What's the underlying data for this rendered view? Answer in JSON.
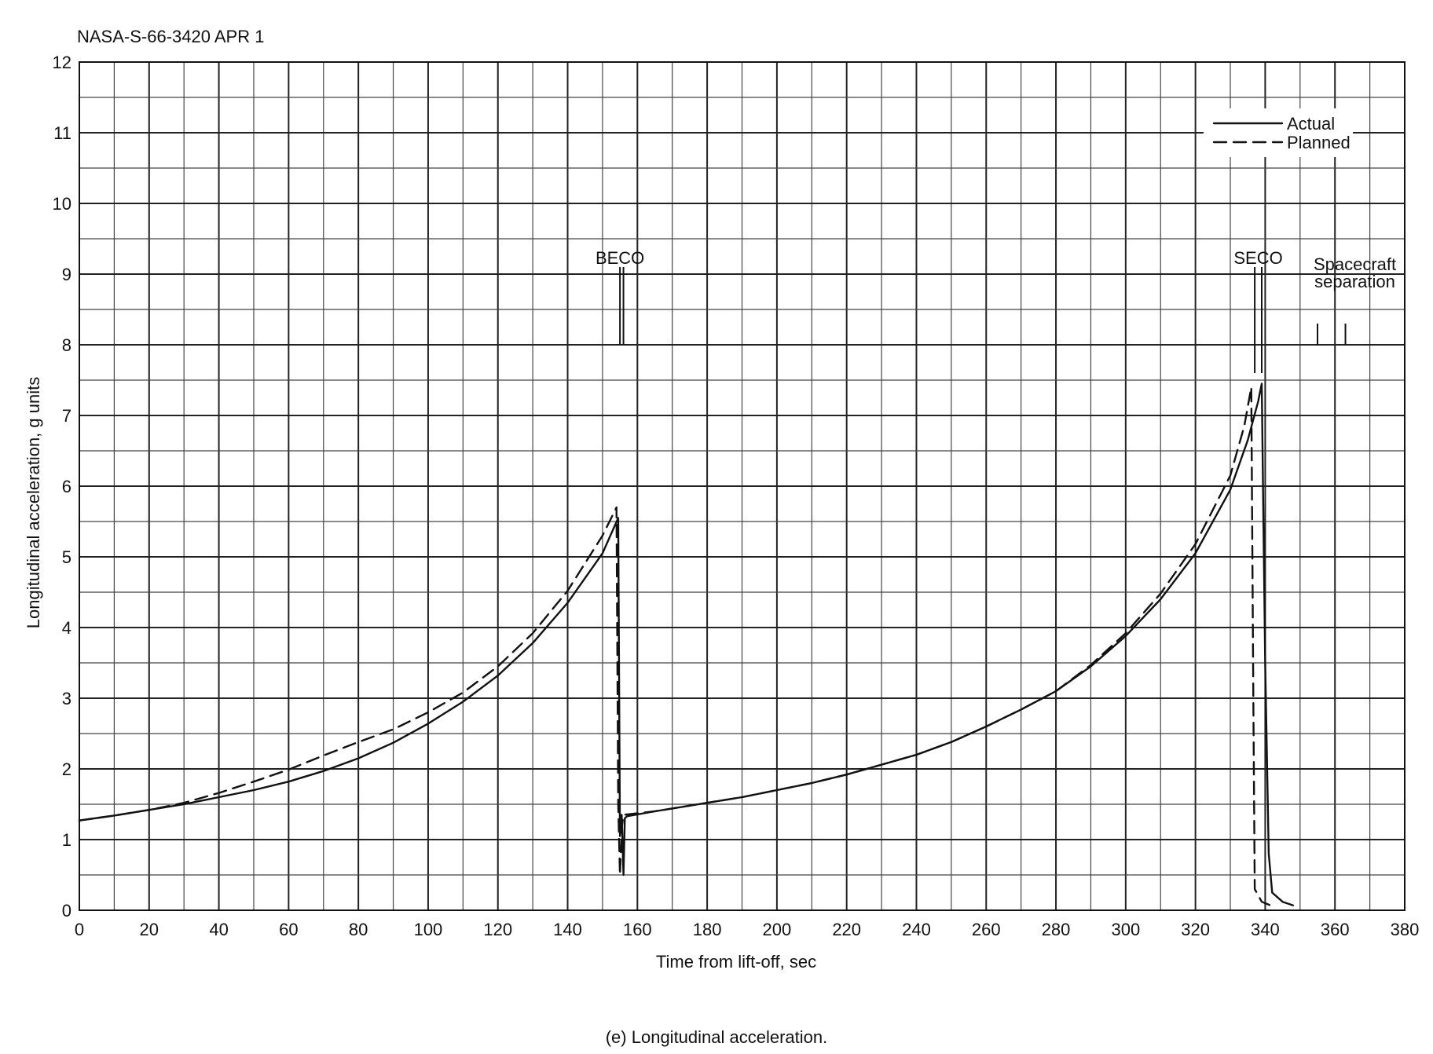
{
  "document_id": "NASA-S-66-3420 APR 1",
  "caption": "(e) Longitudinal acceleration.",
  "chart_data": {
    "type": "line",
    "xlabel": "Time from lift-off, sec",
    "ylabel": "Longitudinal acceleration, g units",
    "xlim": [
      0,
      380
    ],
    "ylim": [
      0,
      12
    ],
    "x_ticks": [
      0,
      20,
      40,
      60,
      80,
      100,
      120,
      140,
      160,
      180,
      200,
      220,
      240,
      260,
      280,
      300,
      320,
      340,
      360,
      380
    ],
    "y_ticks": [
      0,
      1,
      2,
      3,
      4,
      5,
      6,
      7,
      8,
      9,
      10,
      11,
      12
    ],
    "grid": true,
    "grid_minor": {
      "x_step": 10,
      "y_step": 0.5
    },
    "legend_position": "top-right",
    "series": [
      {
        "name": "Actual",
        "style": "solid",
        "points": [
          [
            0,
            1.27
          ],
          [
            10,
            1.34
          ],
          [
            20,
            1.42
          ],
          [
            30,
            1.5
          ],
          [
            40,
            1.6
          ],
          [
            50,
            1.7
          ],
          [
            60,
            1.82
          ],
          [
            70,
            1.97
          ],
          [
            80,
            2.15
          ],
          [
            90,
            2.37
          ],
          [
            100,
            2.64
          ],
          [
            110,
            2.95
          ],
          [
            120,
            3.32
          ],
          [
            130,
            3.78
          ],
          [
            140,
            4.35
          ],
          [
            150,
            5.05
          ],
          [
            154.5,
            5.55
          ],
          [
            155.0,
            1.05
          ],
          [
            155.5,
            1.35
          ],
          [
            156.0,
            0.5
          ],
          [
            156.4,
            1.3
          ],
          [
            157.0,
            1.33
          ],
          [
            165,
            1.4
          ],
          [
            170,
            1.44
          ],
          [
            180,
            1.52
          ],
          [
            190,
            1.6
          ],
          [
            200,
            1.7
          ],
          [
            210,
            1.8
          ],
          [
            220,
            1.92
          ],
          [
            230,
            2.06
          ],
          [
            240,
            2.2
          ],
          [
            250,
            2.38
          ],
          [
            260,
            2.6
          ],
          [
            270,
            2.84
          ],
          [
            280,
            3.1
          ],
          [
            290,
            3.45
          ],
          [
            300,
            3.88
          ],
          [
            310,
            4.4
          ],
          [
            320,
            5.05
          ],
          [
            330,
            5.95
          ],
          [
            335,
            6.65
          ],
          [
            338,
            7.2
          ],
          [
            339,
            7.45
          ],
          [
            340,
            3.5
          ],
          [
            341,
            0.8
          ],
          [
            342,
            0.25
          ],
          [
            345,
            0.12
          ],
          [
            348,
            0.07
          ]
        ]
      },
      {
        "name": "Planned",
        "style": "dashed",
        "points": [
          [
            0,
            1.27
          ],
          [
            10,
            1.34
          ],
          [
            20,
            1.42
          ],
          [
            30,
            1.52
          ],
          [
            40,
            1.66
          ],
          [
            50,
            1.82
          ],
          [
            60,
            1.99
          ],
          [
            70,
            2.19
          ],
          [
            80,
            2.38
          ],
          [
            90,
            2.56
          ],
          [
            100,
            2.8
          ],
          [
            110,
            3.08
          ],
          [
            120,
            3.45
          ],
          [
            130,
            3.92
          ],
          [
            140,
            4.52
          ],
          [
            150,
            5.3
          ],
          [
            154,
            5.7
          ],
          [
            154.5,
            1.5
          ],
          [
            155,
            0.5
          ],
          [
            155.6,
            1.2
          ],
          [
            156,
            1.35
          ],
          [
            165,
            1.4
          ],
          [
            170,
            1.44
          ],
          [
            180,
            1.52
          ],
          [
            190,
            1.6
          ],
          [
            200,
            1.7
          ],
          [
            210,
            1.8
          ],
          [
            220,
            1.92
          ],
          [
            230,
            2.06
          ],
          [
            240,
            2.2
          ],
          [
            250,
            2.38
          ],
          [
            260,
            2.6
          ],
          [
            270,
            2.84
          ],
          [
            280,
            3.1
          ],
          [
            290,
            3.47
          ],
          [
            300,
            3.92
          ],
          [
            310,
            4.48
          ],
          [
            320,
            5.18
          ],
          [
            330,
            6.15
          ],
          [
            334,
            6.85
          ],
          [
            336,
            7.4
          ],
          [
            336.6,
            3.0
          ],
          [
            337,
            0.3
          ],
          [
            339,
            0.12
          ],
          [
            342,
            0.06
          ]
        ]
      }
    ],
    "annotations": [
      {
        "text": "BECO",
        "x": 155
      },
      {
        "text": "SECO",
        "x": 338
      },
      {
        "text": "Spacecraft",
        "x": 363
      },
      {
        "text": "separation",
        "x": 363
      }
    ]
  }
}
